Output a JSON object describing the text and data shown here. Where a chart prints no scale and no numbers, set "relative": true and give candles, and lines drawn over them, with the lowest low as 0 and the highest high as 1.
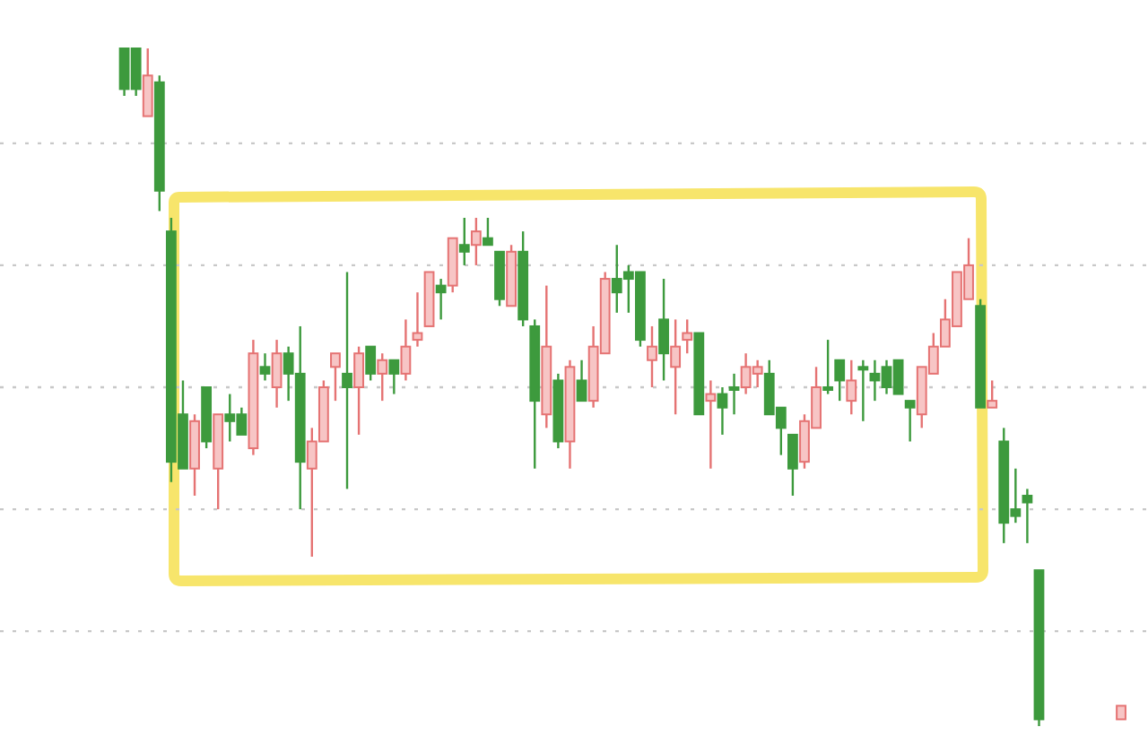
{
  "chart_data": {
    "type": "candlestick",
    "relative": true,
    "grid": "y",
    "categories": [
      null,
      null,
      null,
      null,
      null,
      null,
      null,
      null,
      null,
      null,
      null,
      null,
      null,
      null,
      null,
      null,
      null,
      null,
      null,
      null,
      null,
      null,
      null,
      null,
      null,
      null,
      null,
      null,
      null,
      null,
      null,
      null,
      null,
      null,
      null,
      null,
      null,
      null,
      null,
      null,
      null,
      null,
      null,
      null,
      null,
      null,
      null,
      null,
      null,
      null,
      null,
      null,
      null,
      null,
      null,
      null,
      null,
      null,
      null,
      null,
      null,
      null,
      null,
      null,
      null,
      null,
      null,
      null,
      null,
      null,
      null,
      null,
      null,
      null,
      null,
      null,
      null,
      null,
      null,
      null,
      null,
      null,
      null,
      null,
      null,
      null,
      null,
      null,
      null,
      null,
      null,
      null,
      null,
      null,
      null,
      null
    ],
    "ohlc": [
      null,
      null,
      null,
      null,
      null,
      null,
      null,
      null,
      null,
      [
        1,
        1,
        0.93,
        0.94
      ],
      [
        1,
        1,
        0.93,
        0.94
      ],
      [
        0.9,
        1,
        0.9,
        0.96
      ],
      [
        0.95,
        0.96,
        0.76,
        0.79
      ],
      [
        0.73,
        0.75,
        0.36,
        0.39
      ],
      [
        0.46,
        0.51,
        0.38,
        0.38
      ],
      [
        0.38,
        0.46,
        0.34,
        0.45
      ],
      [
        0.5,
        0.5,
        0.41,
        0.42
      ],
      [
        0.38,
        0.46,
        0.32,
        0.46
      ],
      [
        0.46,
        0.49,
        0.42,
        0.45
      ],
      [
        0.46,
        0.47,
        0.43,
        0.43
      ],
      [
        0.41,
        0.57,
        0.4,
        0.55
      ],
      [
        0.53,
        0.55,
        0.51,
        0.52
      ],
      [
        0.5,
        0.57,
        0.47,
        0.55
      ],
      [
        0.55,
        0.56,
        0.48,
        0.52
      ],
      [
        0.52,
        0.59,
        0.32,
        0.39
      ],
      [
        0.38,
        0.44,
        0.25,
        0.42
      ],
      [
        0.42,
        0.51,
        0.42,
        0.5
      ],
      [
        0.53,
        0.55,
        0.48,
        0.55
      ],
      [
        0.52,
        0.67,
        0.35,
        0.5
      ],
      [
        0.5,
        0.56,
        0.43,
        0.55
      ],
      [
        0.56,
        0.56,
        0.51,
        0.52
      ],
      [
        0.52,
        0.55,
        0.48,
        0.54
      ],
      [
        0.54,
        0.54,
        0.49,
        0.52
      ],
      [
        0.52,
        0.6,
        0.51,
        0.56
      ],
      [
        0.57,
        0.64,
        0.56,
        0.58
      ],
      [
        0.59,
        0.67,
        0.59,
        0.67
      ],
      [
        0.65,
        0.66,
        0.6,
        0.64
      ],
      [
        0.65,
        0.72,
        0.64,
        0.72
      ],
      [
        0.71,
        0.75,
        0.68,
        0.7
      ],
      [
        0.71,
        0.75,
        0.68,
        0.73
      ],
      [
        0.72,
        0.75,
        0.71,
        0.71
      ],
      [
        0.7,
        0.7,
        0.62,
        0.63
      ],
      [
        0.62,
        0.71,
        0.62,
        0.7
      ],
      [
        0.7,
        0.73,
        0.59,
        0.6
      ],
      [
        0.59,
        0.6,
        0.38,
        0.48
      ],
      [
        0.46,
        0.65,
        0.44,
        0.56
      ],
      [
        0.51,
        0.52,
        0.41,
        0.42
      ],
      [
        0.42,
        0.54,
        0.38,
        0.53
      ],
      [
        0.51,
        0.54,
        0.48,
        0.48
      ],
      [
        0.48,
        0.59,
        0.47,
        0.56
      ],
      [
        0.55,
        0.67,
        0.55,
        0.66
      ],
      [
        0.66,
        0.71,
        0.61,
        0.64
      ],
      [
        0.67,
        0.68,
        0.61,
        0.66
      ],
      [
        0.67,
        0.67,
        0.56,
        0.57
      ],
      [
        0.54,
        0.59,
        0.5,
        0.56
      ],
      [
        0.6,
        0.66,
        0.51,
        0.55
      ],
      [
        0.53,
        0.6,
        0.46,
        0.56
      ],
      [
        0.57,
        0.6,
        0.55,
        0.58
      ],
      [
        0.58,
        0.58,
        0.46,
        0.46
      ],
      [
        0.48,
        0.51,
        0.38,
        0.49
      ],
      [
        0.49,
        0.5,
        0.43,
        0.47
      ],
      [
        0.5,
        0.52,
        0.46,
        0.5
      ],
      [
        0.5,
        0.55,
        0.49,
        0.53
      ],
      [
        0.52,
        0.54,
        0.5,
        0.53
      ],
      [
        0.52,
        0.54,
        0.46,
        0.46
      ],
      [
        0.47,
        0.47,
        0.4,
        0.44
      ],
      [
        0.43,
        0.43,
        0.34,
        0.38
      ],
      [
        0.39,
        0.46,
        0.38,
        0.45
      ],
      [
        0.44,
        0.53,
        0.44,
        0.5
      ],
      [
        0.5,
        0.57,
        0.49,
        0.5
      ],
      [
        0.54,
        0.54,
        0.48,
        0.51
      ],
      [
        0.48,
        0.54,
        0.46,
        0.51
      ],
      [
        0.53,
        0.54,
        0.45,
        0.53
      ],
      [
        0.52,
        0.54,
        0.48,
        0.51
      ],
      [
        0.53,
        0.54,
        0.49,
        0.5
      ],
      [
        0.54,
        0.54,
        0.49,
        0.49
      ],
      [
        0.48,
        0.48,
        0.42,
        0.47
      ],
      [
        0.46,
        0.53,
        0.44,
        0.53
      ],
      [
        0.52,
        0.58,
        0.52,
        0.56
      ],
      [
        0.56,
        0.63,
        0.56,
        0.6
      ],
      [
        0.59,
        0.67,
        0.59,
        0.67
      ],
      [
        0.63,
        0.72,
        0.63,
        0.68
      ],
      [
        0.62,
        0.63,
        0.47,
        0.47
      ],
      [
        0.47,
        0.51,
        0.47,
        0.48
      ],
      [
        0.42,
        0.44,
        0.27,
        0.3
      ],
      [
        0.32,
        0.38,
        0.3,
        0.31
      ],
      [
        0.34,
        0.35,
        0.27,
        0.33
      ],
      [
        0.23,
        0.23,
        0,
        0.01
      ],
      null,
      null,
      null,
      null,
      null,
      null,
      [
        0.01,
        0.03,
        0.01,
        0.03
      ],
      null
    ]
  }
}
